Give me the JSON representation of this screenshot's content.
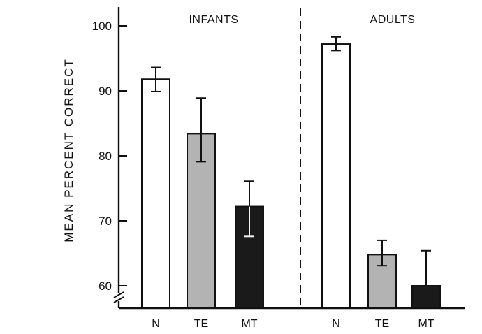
{
  "chart_data": {
    "type": "bar",
    "ylabel": "MEAN PERCENT CORRECT",
    "xlabel": "",
    "title": "",
    "y_axis_break": true,
    "ylim": [
      56,
      103
    ],
    "yticks": [
      60,
      70,
      80,
      90,
      100
    ],
    "groups": [
      {
        "label": "INFANTS",
        "bars": [
          {
            "category": "N",
            "value": 91.8,
            "err_low": 89.9,
            "err_high": 93.6,
            "fill": "#ffffff"
          },
          {
            "category": "TE",
            "value": 83.4,
            "err_low": 79.1,
            "err_high": 88.9,
            "fill": "#b3b3b3"
          },
          {
            "category": "MT",
            "value": 72.2,
            "err_low": 67.6,
            "err_high": 76.1,
            "fill": "#1a1a1a"
          }
        ]
      },
      {
        "label": "ADULTS",
        "bars": [
          {
            "category": "N",
            "value": 97.2,
            "err_low": 96.2,
            "err_high": 98.3,
            "fill": "#ffffff"
          },
          {
            "category": "TE",
            "value": 64.8,
            "err_low": 63.1,
            "err_high": 67.0,
            "fill": "#b3b3b3"
          },
          {
            "category": "MT",
            "value": 60.0,
            "err_low": 60.0,
            "err_high": 65.4,
            "fill": "#1a1a1a"
          }
        ]
      }
    ],
    "group_separator": "dashed"
  }
}
